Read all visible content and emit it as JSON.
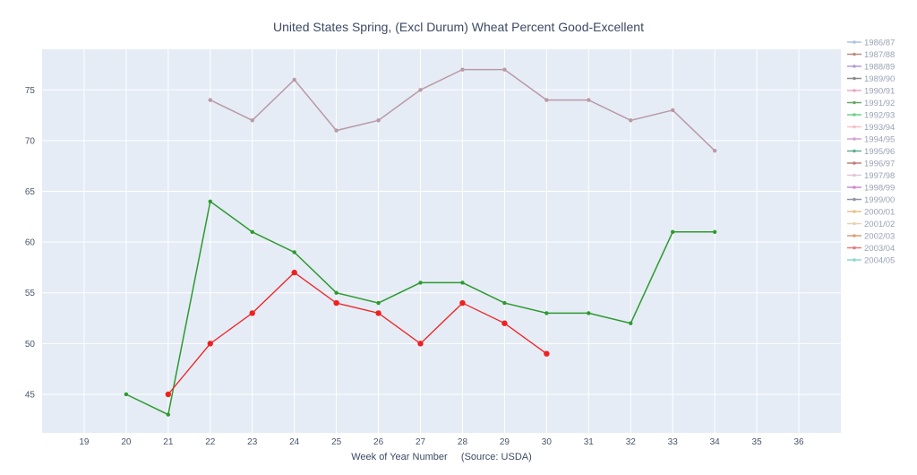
{
  "chart_data": {
    "type": "line",
    "title": "United States Spring, (Excl Durum) Wheat Percent Good-Excellent",
    "xlabel": "Week of Year Number     (Source: USDA)",
    "ylabel": "",
    "xlim": [
      18,
      37
    ],
    "ylim": [
      41.2,
      79
    ],
    "x_ticks": [
      19,
      20,
      21,
      22,
      23,
      24,
      25,
      26,
      27,
      28,
      29,
      30,
      31,
      32,
      33,
      34,
      35,
      36
    ],
    "y_ticks": [
      45,
      50,
      55,
      60,
      65,
      70,
      75
    ],
    "grid": true,
    "legend_position": "right",
    "legend": [
      {
        "name": "1986/87",
        "color": "#a9c4e0"
      },
      {
        "name": "1987/88",
        "color": "#b98b7e"
      },
      {
        "name": "1988/89",
        "color": "#b59ad6"
      },
      {
        "name": "1989/90",
        "color": "#8a8a8a"
      },
      {
        "name": "1990/91",
        "color": "#e6a8c8"
      },
      {
        "name": "1991/92",
        "color": "#6aa86a"
      },
      {
        "name": "1992/93",
        "color": "#6ecf8a"
      },
      {
        "name": "1993/94",
        "color": "#f2c2c2"
      },
      {
        "name": "1994/95",
        "color": "#d6a0d6"
      },
      {
        "name": "1995/96",
        "color": "#5fae8f"
      },
      {
        "name": "1996/97",
        "color": "#c47a7a"
      },
      {
        "name": "1997/98",
        "color": "#e0c6d6"
      },
      {
        "name": "1998/99",
        "color": "#c98bd1"
      },
      {
        "name": "1999/00",
        "color": "#8f95a3"
      },
      {
        "name": "2000/01",
        "color": "#e8c08a"
      },
      {
        "name": "2001/02",
        "color": "#e8d2b8"
      },
      {
        "name": "2002/03",
        "color": "#d9a07a"
      },
      {
        "name": "2003/04",
        "color": "#e67a7a"
      },
      {
        "name": "2004/05",
        "color": "#8fd6c8"
      }
    ],
    "series": [
      {
        "name": "",
        "color": "#b99aa6",
        "marker": "small",
        "x": [
          22,
          23,
          24,
          25,
          26,
          27,
          28,
          29,
          30,
          31,
          32,
          33,
          34
        ],
        "y": [
          74,
          72,
          76,
          71,
          72,
          75,
          77,
          77,
          74,
          74,
          72,
          73,
          69
        ]
      },
      {
        "name": "",
        "color": "#2e9a2e",
        "marker": "small",
        "x": [
          20,
          21,
          22,
          23,
          24,
          25,
          26,
          27,
          28,
          29,
          30,
          31,
          32,
          33,
          34
        ],
        "y": [
          45,
          43,
          64,
          61,
          59,
          55,
          54,
          56,
          56,
          54,
          53,
          53,
          52,
          61,
          61
        ]
      },
      {
        "name": "",
        "color": "#f02020",
        "marker": "large",
        "x": [
          21,
          22,
          23,
          24,
          25,
          26,
          27,
          28,
          29,
          30
        ],
        "y": [
          45,
          50,
          53,
          57,
          54,
          53,
          50,
          54,
          52,
          49
        ]
      }
    ]
  }
}
